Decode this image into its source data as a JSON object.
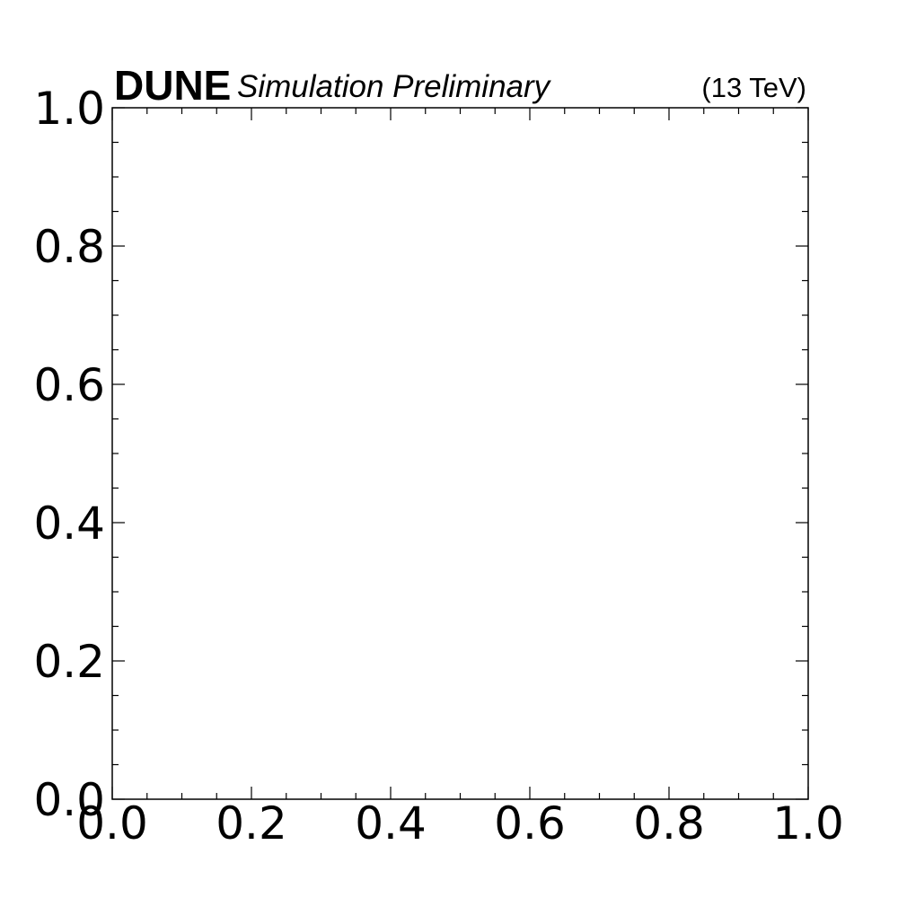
{
  "chart_data": {
    "type": "scatter",
    "experiment_label": "DUNE",
    "status_label": "Simulation Preliminary",
    "energy_label": "(13 TeV)",
    "title": "",
    "xlabel": "",
    "ylabel": "",
    "xlim": [
      0.0,
      1.0
    ],
    "ylim": [
      0.0,
      1.0
    ],
    "x_major_ticks": [
      0.0,
      0.2,
      0.4,
      0.6,
      0.8,
      1.0
    ],
    "y_major_ticks": [
      0.0,
      0.2,
      0.4,
      0.6,
      0.8,
      1.0
    ],
    "x_tick_labels": [
      "0.0",
      "0.2",
      "0.4",
      "0.6",
      "0.8",
      "1.0"
    ],
    "y_tick_labels": [
      "0.0",
      "0.2",
      "0.4",
      "0.6",
      "0.8",
      "1.0"
    ],
    "minor_tick_step": 0.05,
    "grid": false,
    "tick_direction": "in",
    "series": []
  }
}
